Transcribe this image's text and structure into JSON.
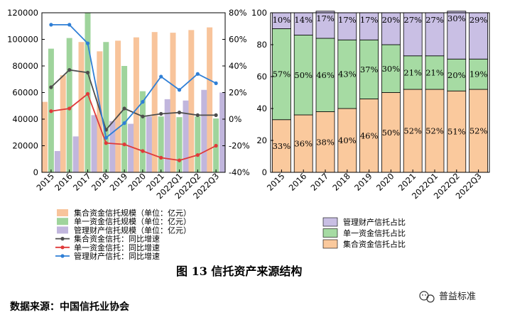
{
  "caption": "图 13   信托资产来源结构",
  "source": "数据来源：中国信托业协会",
  "watermark": "普益标准",
  "colors": {
    "collective": "#f8c49b",
    "single": "#9fd49c",
    "mgmt": "#c1b6dd",
    "collective_line": "#4d4d4d",
    "single_line": "#e03a3a",
    "mgmt_line": "#2f7fd6",
    "collective_seg": "#fac99d",
    "single_seg": "#a6dba3",
    "mgmt_seg": "#c9bfe4"
  },
  "chart_data": [
    {
      "type": "bar",
      "categories": [
        "2015",
        "2016",
        "2017",
        "2018",
        "2019",
        "2020",
        "2021",
        "2022Q1",
        "2022Q2",
        "2022Q3"
      ],
      "ylim": [
        0,
        120000
      ],
      "yticks": [
        "0",
        "20000",
        "40000",
        "60000",
        "80000",
        "100000",
        "120000"
      ],
      "y2lim": [
        -40,
        80
      ],
      "y2ticks": [
        "-40%",
        "-20%",
        "0%",
        "20%",
        "40%",
        "60%",
        "80%"
      ],
      "series": [
        {
          "name": "集合资金信托规模（单位：亿元）",
          "kind": "bar",
          "values": [
            53000,
            73000,
            98000,
            91000,
            99000,
            101500,
            105500,
            105000,
            107000,
            109000
          ]
        },
        {
          "name": "单一资金信托规模（单位：亿元）",
          "kind": "bar",
          "values": [
            93000,
            101000,
            120000,
            98000,
            80000,
            61000,
            42000,
            41500,
            42000,
            40500
          ]
        },
        {
          "name": "管理财产信托规模（单位：亿元）",
          "kind": "bar",
          "values": [
            16000,
            27000,
            43000,
            38500,
            36500,
            42000,
            55000,
            54000,
            62000,
            60000
          ]
        },
        {
          "name": "集合资金信托：同比增速",
          "kind": "line",
          "axis": "right",
          "values": [
            24,
            37,
            35,
            -8,
            8,
            2,
            4,
            5,
            3,
            3
          ]
        },
        {
          "name": "单一资金信托：同比增速",
          "kind": "line",
          "axis": "right",
          "values": [
            6,
            8,
            19,
            -18,
            -19,
            -24,
            -29,
            -31,
            -27,
            -20
          ]
        },
        {
          "name": "管理财产信托：同比增速",
          "kind": "line",
          "axis": "right",
          "values": [
            71,
            71,
            57,
            -14,
            -3,
            13,
            32,
            22,
            34,
            27
          ]
        }
      ]
    },
    {
      "type": "bar",
      "stacked": true,
      "categories": [
        "2015",
        "2016",
        "2017",
        "2018",
        "2019",
        "2020",
        "2021",
        "2022Q1",
        "2022Q2",
        "2022Q3"
      ],
      "ylim": [
        0,
        100
      ],
      "yticks": [
        "0",
        "20",
        "40",
        "60",
        "80",
        "100"
      ],
      "series": [
        {
          "name": "集合资金信托占比",
          "values": [
            33,
            36,
            38,
            40,
            46,
            50,
            52,
            52,
            51,
            52
          ],
          "labels": [
            "33%",
            "36%",
            "38%",
            "40%",
            "46%",
            "50%",
            "52%",
            "52%",
            "51%",
            "52%"
          ]
        },
        {
          "name": "单一资金信托占比",
          "values": [
            57,
            50,
            46,
            43,
            37,
            30,
            21,
            21,
            20,
            19
          ],
          "labels": [
            "57%",
            "50%",
            "46%",
            "43%",
            "37%",
            "30%",
            "21%",
            "21%",
            "20%",
            "19%"
          ]
        },
        {
          "name": "管理财产信托占比",
          "values": [
            10,
            14,
            17,
            17,
            17,
            20,
            27,
            27,
            30,
            29
          ],
          "labels": [
            "10%",
            "14%",
            "17%",
            "17%",
            "17%",
            "20%",
            "27%",
            "27%",
            "30%",
            "29%"
          ]
        }
      ]
    }
  ]
}
